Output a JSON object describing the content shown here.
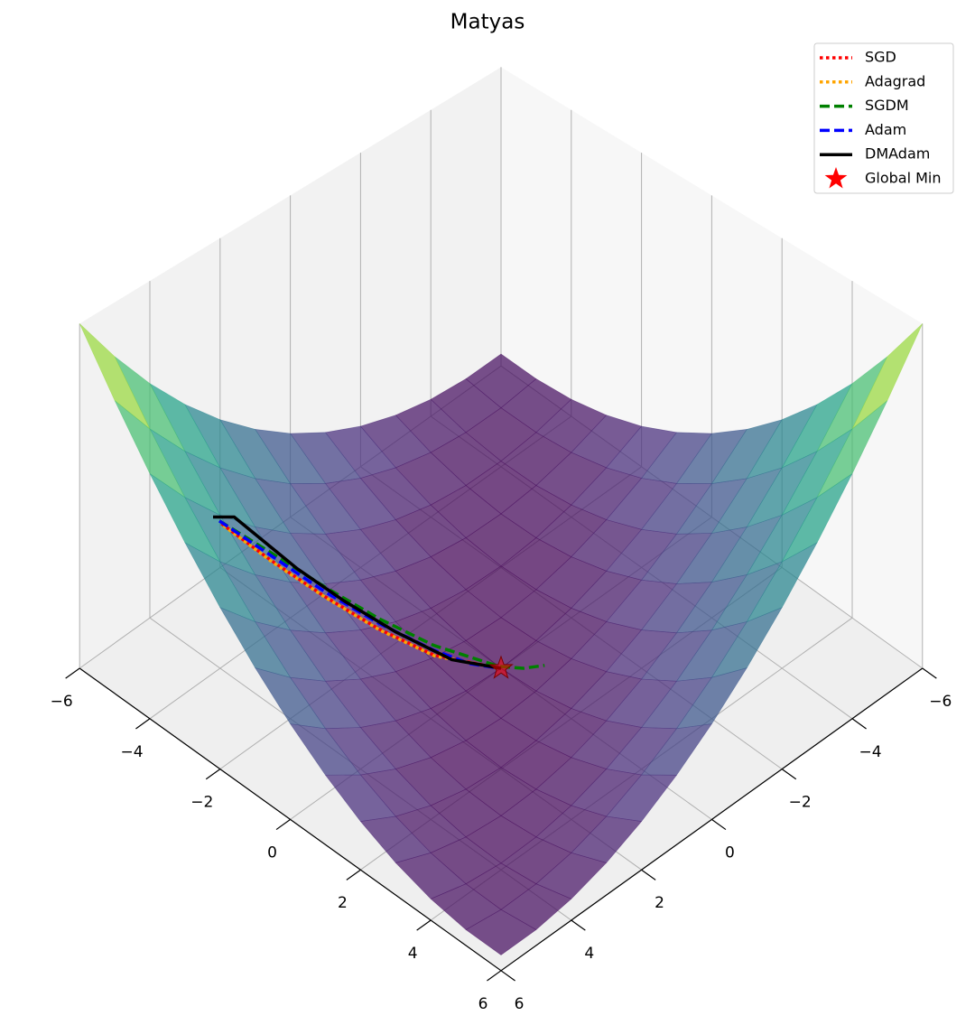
{
  "chart_data": {
    "type": "surface3d",
    "title": "Matyas",
    "xlim": [
      -6,
      6
    ],
    "ylim": [
      -6,
      6
    ],
    "zlim": [
      0,
      36
    ],
    "xticks": [
      {
        "value": -6,
        "label": "−6"
      },
      {
        "value": -4,
        "label": "−4"
      },
      {
        "value": -2,
        "label": "−2"
      },
      0,
      2,
      4,
      6
    ],
    "yticks": [
      {
        "value": -6,
        "label": "−6"
      },
      {
        "value": -4,
        "label": "−4"
      },
      {
        "value": -2,
        "label": "−2"
      },
      0,
      2,
      4,
      6
    ],
    "grid": true,
    "legend": "upper right",
    "surface": {
      "colormap": "viridis",
      "x": [
        -6,
        -5,
        -4,
        -3,
        -2,
        -1,
        0,
        1,
        2,
        3,
        4,
        5,
        6
      ],
      "y": [
        -6,
        -5,
        -4,
        -3,
        -2,
        -1,
        0,
        1,
        2,
        3,
        4,
        5,
        6
      ],
      "z": [
        [
          1.44,
          1.46,
          2.0,
          3.06,
          4.64,
          6.74,
          9.36,
          12.5,
          16.16,
          20.34,
          25.04,
          30.26,
          36
        ],
        [
          1.46,
          1.0,
          1.06,
          1.64,
          2.74,
          4.36,
          6.5,
          9.16,
          12.34,
          16.04,
          20.26,
          25,
          30.26
        ],
        [
          2.0,
          1.06,
          0.64,
          0.74,
          1.36,
          2.5,
          4.16,
          6.34,
          9.04,
          12.26,
          16.0,
          20.26,
          25.04
        ],
        [
          3.06,
          1.64,
          0.74,
          0.36,
          0.5,
          1.16,
          2.34,
          4.04,
          6.26,
          9.0,
          12.26,
          16.04,
          20.34
        ],
        [
          4.64,
          2.74,
          1.36,
          0.5,
          0.16,
          0.34,
          1.04,
          2.26,
          4.0,
          6.26,
          9.04,
          12.34,
          16.16
        ],
        [
          6.74,
          4.36,
          2.5,
          1.16,
          0.34,
          0.04,
          0.26,
          1.0,
          2.26,
          4.04,
          6.34,
          9.16,
          12.5
        ],
        [
          9.36,
          6.5,
          4.16,
          2.34,
          1.04,
          0.26,
          0,
          0.26,
          1.04,
          2.34,
          4.16,
          6.5,
          9.36
        ],
        [
          12.5,
          9.16,
          6.34,
          4.04,
          2.26,
          1.0,
          0.26,
          0.04,
          0.34,
          1.16,
          2.5,
          4.36,
          6.74
        ],
        [
          16.16,
          12.34,
          9.04,
          6.26,
          4.0,
          2.26,
          1.04,
          0.34,
          0.16,
          0.5,
          1.36,
          2.74,
          4.64
        ],
        [
          20.34,
          16.04,
          12.26,
          9.0,
          6.26,
          4.04,
          2.34,
          1.16,
          0.5,
          0.36,
          0.74,
          1.64,
          3.06
        ],
        [
          25.04,
          20.26,
          16.0,
          12.26,
          9.04,
          6.34,
          4.16,
          2.5,
          1.36,
          0.74,
          0.64,
          1.06,
          2.0
        ],
        [
          30.26,
          25,
          20.26,
          16.04,
          12.34,
          9.16,
          6.5,
          4.36,
          2.74,
          1.64,
          1.06,
          1.0,
          1.46
        ],
        [
          36,
          30.26,
          25.04,
          20.34,
          16.16,
          12.5,
          9.36,
          6.74,
          4.64,
          3.06,
          2.0,
          1.46,
          1.44
        ]
      ]
    },
    "series": [
      {
        "name": "SGD",
        "color": "red",
        "style": "dotted",
        "x": [
          -3.98,
          -3.28,
          -2.51,
          -1.74,
          -0.96,
          -0.03
        ],
        "y": [
          3.98,
          3.28,
          2.51,
          1.74,
          0.96,
          0.03
        ],
        "z": [
          15.1,
          11.3,
          7.5,
          4.1,
          1.4,
          0
        ]
      },
      {
        "name": "Adagrad",
        "color": "orange",
        "style": "dotted",
        "x": [
          -3.95,
          -3.26,
          -2.5,
          -1.73,
          -0.95,
          -0.03
        ],
        "y": [
          3.95,
          3.26,
          2.5,
          1.73,
          0.95,
          0.03
        ],
        "z": [
          14.9,
          11.1,
          7.4,
          4.0,
          1.3,
          0
        ]
      },
      {
        "name": "SGDM",
        "color": "green",
        "style": "dashed",
        "x": [
          -4.01,
          -3.28,
          -2.51,
          -1.74,
          -0.96,
          -0.03,
          0.32,
          0.62
        ],
        "y": [
          4.01,
          3.28,
          2.51,
          1.74,
          0.96,
          0.03,
          -0.32,
          -0.62
        ],
        "z": [
          15.4,
          12.1,
          8.5,
          5.2,
          2.4,
          0.2,
          0,
          0.3
        ]
      },
      {
        "name": "Adam",
        "color": "blue",
        "style": "dashed",
        "x": [
          -4.01,
          -3.28,
          -2.51,
          -1.74,
          -0.96,
          -0.45,
          -0.03
        ],
        "y": [
          4.01,
          3.28,
          2.51,
          1.74,
          0.96,
          0.45,
          0.03
        ],
        "z": [
          15.4,
          11.8,
          8.0,
          4.7,
          1.9,
          0.5,
          0
        ]
      },
      {
        "name": "DMAdam",
        "color": "black",
        "style": "solid",
        "x": [
          -4.1,
          -3.8,
          -3.4,
          -2.9,
          -2.25,
          -1.5,
          -0.7,
          0
        ],
        "y": [
          4.1,
          3.8,
          3.4,
          2.9,
          2.25,
          1.5,
          0.7,
          0
        ],
        "z": [
          15.8,
          15.8,
          13.4,
          10.4,
          7.1,
          3.8,
          0.9,
          0
        ]
      }
    ],
    "global_min": {
      "name": "Global Min",
      "color": "red",
      "x": 0,
      "y": 0,
      "z": 0
    }
  }
}
